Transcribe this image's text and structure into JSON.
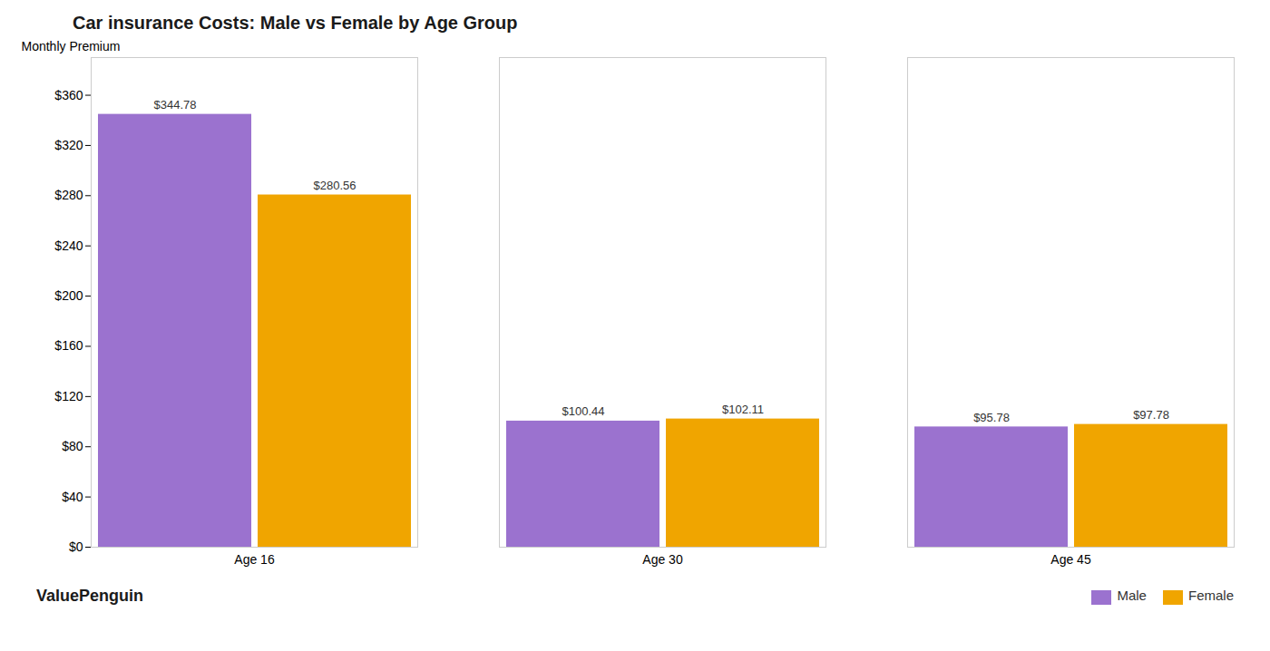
{
  "chart_data": {
    "type": "bar",
    "title": "Car insurance Costs: Male vs Female by Age Group",
    "ylabel": "Monthly Premium",
    "categories": [
      "Age 16",
      "Age 30",
      "Age 45"
    ],
    "series": [
      {
        "name": "Male",
        "color": "#9b72cf",
        "values": [
          344.78,
          100.44,
          95.78
        ],
        "value_labels": [
          "$344.78",
          "$100.44",
          "$95.78"
        ]
      },
      {
        "name": "Female",
        "color": "#f0a500",
        "values": [
          280.56,
          102.11,
          97.78
        ],
        "value_labels": [
          "$280.56",
          "$102.11",
          "$97.78"
        ]
      }
    ],
    "ylim": [
      0,
      390
    ],
    "yticks": [
      {
        "value": 0,
        "label": "$0"
      },
      {
        "value": 40,
        "label": "$40"
      },
      {
        "value": 80,
        "label": "$80"
      },
      {
        "value": 120,
        "label": "$120"
      },
      {
        "value": 160,
        "label": "$160"
      },
      {
        "value": 200,
        "label": "$200"
      },
      {
        "value": 240,
        "label": "$240"
      },
      {
        "value": 280,
        "label": "$280"
      },
      {
        "value": 320,
        "label": "$320"
      },
      {
        "value": 360,
        "label": "$360"
      }
    ],
    "data_labels": true,
    "grid": false,
    "legend": "lower right",
    "annotations": [
      "ValuePenguin"
    ]
  }
}
